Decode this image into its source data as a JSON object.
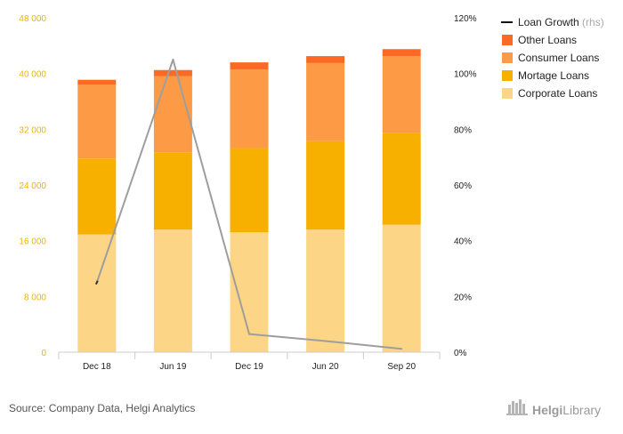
{
  "chart_data": {
    "type": "bar",
    "stacked": true,
    "categories": [
      "Dec 18",
      "Jun 19",
      "Dec 19",
      "Jun 20",
      "Sep 20"
    ],
    "series": [
      {
        "name": "Corporate Loans",
        "color": "#fcd587",
        "values": [
          16900,
          17600,
          17200,
          17600,
          18300
        ]
      },
      {
        "name": "Mortage Loans",
        "color": "#f7b000",
        "values": [
          10900,
          11100,
          12100,
          12700,
          13200
        ]
      },
      {
        "name": "Consumer Loans",
        "color": "#fc9a46",
        "values": [
          10600,
          10900,
          11300,
          11200,
          11000
        ]
      },
      {
        "name": "Other Loans",
        "color": "#fb6a24",
        "values": [
          700,
          900,
          1000,
          1000,
          1000
        ]
      }
    ],
    "line": {
      "name": "Loan Growth",
      "axis_note": "(rhs)",
      "color": "#9e9e9e",
      "values": [
        25,
        105,
        6.5,
        4,
        1.2
      ]
    },
    "y_left": {
      "min": 0,
      "max": 48000,
      "ticks": [
        "0",
        "8 000",
        "16 000",
        "24 000",
        "32 000",
        "40 000",
        "48 000"
      ],
      "tick_values": [
        0,
        8000,
        16000,
        24000,
        32000,
        40000,
        48000
      ],
      "color": "#f0b400"
    },
    "y_right": {
      "min": 0,
      "max": 120,
      "ticks": [
        "0%",
        "20%",
        "40%",
        "60%",
        "80%",
        "100%",
        "120%"
      ],
      "tick_values": [
        0,
        20,
        40,
        60,
        80,
        100,
        120
      ]
    },
    "grid": false,
    "legend_position": "top-right",
    "legend_order": [
      "Loan Growth",
      "Other Loans",
      "Consumer Loans",
      "Mortage Loans",
      "Corporate Loans"
    ]
  },
  "source_text": "Source: Company Data, Helgi Analytics",
  "brand": {
    "part1": "Helgi",
    "part2": "Library",
    "icon": "helgi-library-logo-icon"
  }
}
